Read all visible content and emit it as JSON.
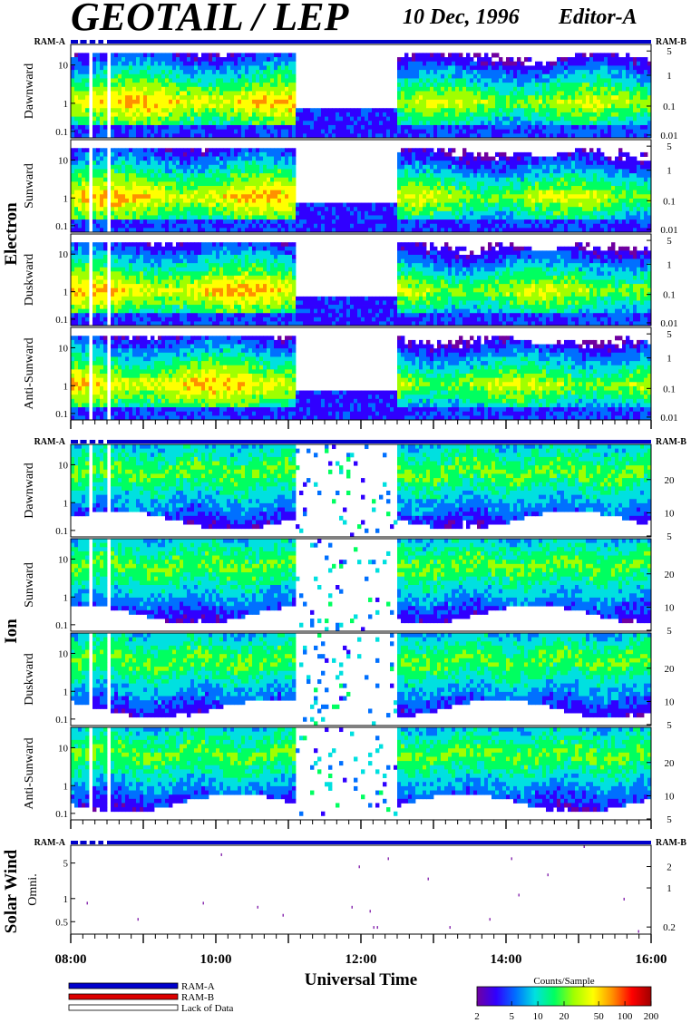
{
  "header": {
    "title": "GEOTAIL / LEP",
    "date": "10 Dec, 1996",
    "editor": "Editor-A"
  },
  "colors": {
    "ram_a": "#0000cc",
    "ram_b": "#dd0000",
    "lack_of_data": "#ffffff",
    "colorscale": [
      "#7000a0",
      "#3000ff",
      "#0070ff",
      "#00e0e0",
      "#00ff60",
      "#a0ff00",
      "#ffff00",
      "#ff9000",
      "#ff0000",
      "#a00000"
    ]
  },
  "legend": {
    "ram_a": "RAM-A",
    "ram_b": "RAM-B",
    "lack": "Lack of Data"
  },
  "colorbar": {
    "title": "Counts/Sample",
    "ticks": [
      "2",
      "5",
      "10",
      "20",
      "50",
      "100",
      "200"
    ],
    "tick_values": [
      2,
      5,
      10,
      20,
      50,
      100,
      200
    ],
    "range": [
      2,
      200
    ],
    "scale": "log"
  },
  "chart_data": {
    "type": "heatmap",
    "xlabel": "Universal Time",
    "x_ticks": [
      "08:00",
      "10:00",
      "12:00",
      "14:00",
      "16:00"
    ],
    "x_range_hours": [
      8,
      16
    ],
    "y_scale": "log",
    "groups": [
      {
        "name": "Electron",
        "ram_left": "RAM-A",
        "ram_right": "RAM-B",
        "panels": [
          {
            "label": "Dawnward",
            "left_ticks": [
              "10",
              "1",
              "0.1"
            ],
            "right_ticks": [
              "5",
              "1",
              "0.1",
              "0.01"
            ]
          },
          {
            "label": "Sunward",
            "left_ticks": [
              "10",
              "1",
              "0.1"
            ],
            "right_ticks": [
              "5",
              "1",
              "0.1",
              "0.01"
            ]
          },
          {
            "label": "Duskward",
            "left_ticks": [
              "10",
              "1",
              "0.1"
            ],
            "right_ticks": [
              "5",
              "1",
              "0.1",
              "0.01"
            ]
          },
          {
            "label": "Anti-Sunward",
            "left_ticks": [
              "10",
              "1",
              "0.1"
            ],
            "right_ticks": [
              "5",
              "1",
              "0.1",
              "0.01"
            ]
          }
        ]
      },
      {
        "name": "Ion",
        "ram_left": "RAM-A",
        "ram_right": "RAM-B",
        "panels": [
          {
            "label": "Dawnward",
            "left_ticks": [
              "10",
              "1",
              "0.1"
            ],
            "right_ticks": [
              "20",
              "10",
              "5"
            ]
          },
          {
            "label": "Sunward",
            "left_ticks": [
              "10",
              "1",
              "0.1"
            ],
            "right_ticks": [
              "20",
              "10",
              "5"
            ]
          },
          {
            "label": "Duskward",
            "left_ticks": [
              "10",
              "1",
              "0.1"
            ],
            "right_ticks": [
              "20",
              "10",
              "5"
            ]
          },
          {
            "label": "Anti-Sunward",
            "left_ticks": [
              "10",
              "1",
              "0.1"
            ],
            "right_ticks": [
              "20",
              "10",
              "5"
            ]
          }
        ]
      },
      {
        "name": "Solar Wind",
        "ram_left": "RAM-A",
        "ram_right": "RAM-B",
        "panels": [
          {
            "label": "Omni.",
            "left_ticks": [
              "5",
              "1",
              "0.5"
            ],
            "right_ticks": [
              "2",
              "1",
              "0.2"
            ]
          }
        ]
      }
    ]
  }
}
